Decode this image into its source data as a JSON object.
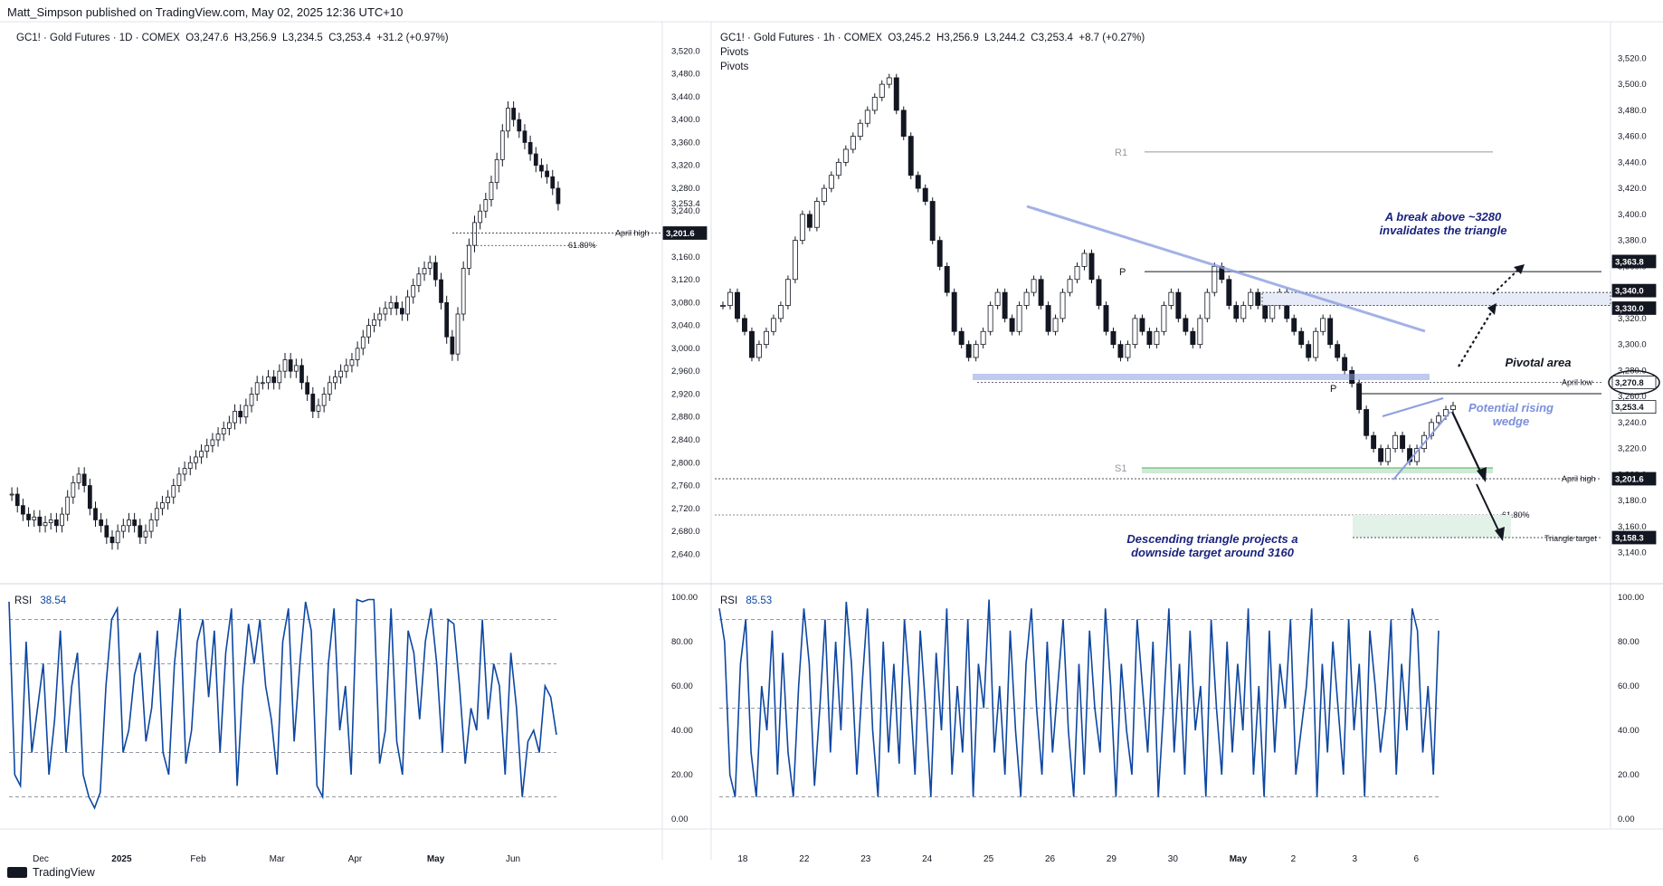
{
  "header": {
    "text": "Matt_Simpson published on TradingView.com, May 02, 2025 12:36 UTC+10"
  },
  "footer": {
    "brand": "TradingView"
  },
  "colors": {
    "up": "#131722",
    "down": "#131722",
    "rsi": "#0d47a1",
    "annot": "#7b8fd9",
    "label_bg": "#131722"
  },
  "chart_data": [
    {
      "type": "candlestick",
      "info": {
        "symbol": "GC1! · Gold Futures · 1D · COMEX",
        "o": "O3,247.6",
        "h": "H3,256.9",
        "l": "L3,234.5",
        "c": "C3,253.4",
        "chg": "+31.2 (+0.97%)"
      },
      "xticks": [
        "Dec",
        "2025",
        "Feb",
        "Mar",
        "Apr",
        "May",
        "Jun"
      ],
      "yticks": [
        "3,520.0",
        "3,480.0",
        "3,440.0",
        "3,400.0",
        "3,360.0",
        "3,320.0",
        "3,280.0",
        "3,240.0",
        "3,200.0",
        "3,160.0",
        "3,120.0",
        "3,080.0",
        "3,040.0",
        "3,000.0",
        "2,960.0",
        "2,920.0",
        "2,880.0",
        "2,840.0",
        "2,800.0",
        "2,760.0",
        "2,720.0",
        "2,680.0",
        "2,640.0"
      ],
      "ylim": [
        2620,
        3530
      ],
      "close_series": [
        2745,
        2725,
        2710,
        2700,
        2705,
        2690,
        2695,
        2700,
        2690,
        2710,
        2740,
        2765,
        2780,
        2760,
        2720,
        2700,
        2690,
        2670,
        2660,
        2680,
        2690,
        2700,
        2690,
        2670,
        2680,
        2700,
        2720,
        2730,
        2740,
        2760,
        2780,
        2790,
        2800,
        2810,
        2820,
        2830,
        2840,
        2850,
        2860,
        2870,
        2890,
        2880,
        2900,
        2920,
        2940,
        2940,
        2950,
        2940,
        2960,
        2980,
        2960,
        2970,
        2940,
        2920,
        2890,
        2900,
        2920,
        2940,
        2950,
        2960,
        2970,
        2980,
        3000,
        3020,
        3040,
        3050,
        3060,
        3070,
        3080,
        3070,
        3060,
        3090,
        3110,
        3130,
        3140,
        3150,
        3120,
        3080,
        3020,
        2990,
        3060,
        3140,
        3180,
        3220,
        3240,
        3260,
        3290,
        3330,
        3380,
        3420,
        3400,
        3380,
        3360,
        3340,
        3320,
        3310,
        3300,
        3280,
        3253
      ],
      "annotations": {
        "april_high_label": "April high",
        "april_high_value": "3,201.6",
        "fib_label": "61.80%",
        "last_value": "3,253.4"
      },
      "april_high": 3201.6,
      "fib_level": 3180,
      "last_price": 3253.4,
      "rsi": {
        "label": "RSI",
        "value": "38.54",
        "yticks": [
          "100.00",
          "80.00",
          "60.00",
          "40.00",
          "20.00",
          "0.00"
        ],
        "ylim": [
          0,
          100
        ],
        "bands": [
          30,
          70,
          90,
          10
        ],
        "values": [
          98,
          20,
          15,
          80,
          30,
          50,
          70,
          20,
          45,
          85,
          30,
          60,
          75,
          20,
          10,
          5,
          12,
          60,
          90,
          95,
          30,
          40,
          65,
          75,
          35,
          50,
          85,
          30,
          20,
          70,
          95,
          25,
          40,
          80,
          90,
          55,
          85,
          30,
          75,
          95,
          15,
          60,
          88,
          70,
          90,
          60,
          45,
          20,
          80,
          95,
          35,
          70,
          98,
          85,
          15,
          10,
          70,
          95,
          40,
          60,
          20,
          99,
          98,
          99,
          99,
          25,
          40,
          95,
          35,
          20,
          85,
          75,
          45,
          80,
          95,
          70,
          30,
          90,
          88,
          60,
          25,
          50,
          40,
          90,
          45,
          70,
          60,
          20,
          75,
          50,
          10,
          35,
          40,
          30,
          60,
          55,
          38
        ]
      }
    },
    {
      "type": "candlestick",
      "info": {
        "symbol": "GC1! · Gold Futures · 1h · COMEX",
        "o": "O3,245.2",
        "h": "H3,256.9",
        "l": "L3,244.2",
        "c": "C3,253.4",
        "chg": "+8.7 (+0.27%)",
        "indicator1": "Pivots",
        "indicator2": "Pivots"
      },
      "xticks": [
        "18",
        "22",
        "23",
        "24",
        "25",
        "26",
        "29",
        "30",
        "May",
        "2",
        "3",
        "6"
      ],
      "yticks": [
        "3,520.0",
        "3,500.0",
        "3,480.0",
        "3,460.0",
        "3,440.0",
        "3,420.0",
        "3,400.0",
        "3,380.0",
        "3,360.0",
        "3,340.0",
        "3,320.0",
        "3,300.0",
        "3,280.0",
        "3,260.0",
        "3,240.0",
        "3,220.0",
        "3,200.0",
        "3,180.0",
        "3,160.0",
        "3,140.0"
      ],
      "ylim": [
        3130,
        3530
      ],
      "close_series": [
        3330,
        3340,
        3320,
        3310,
        3290,
        3300,
        3310,
        3320,
        3330,
        3350,
        3380,
        3400,
        3390,
        3410,
        3420,
        3430,
        3440,
        3450,
        3460,
        3470,
        3480,
        3490,
        3500,
        3505,
        3480,
        3460,
        3430,
        3420,
        3410,
        3380,
        3360,
        3340,
        3310,
        3300,
        3290,
        3300,
        3310,
        3330,
        3340,
        3320,
        3310,
        3330,
        3340,
        3350,
        3330,
        3310,
        3320,
        3340,
        3350,
        3360,
        3370,
        3350,
        3330,
        3310,
        3300,
        3290,
        3300,
        3320,
        3310,
        3300,
        3310,
        3330,
        3340,
        3320,
        3310,
        3300,
        3320,
        3340,
        3360,
        3350,
        3330,
        3320,
        3330,
        3340,
        3330,
        3320,
        3330,
        3340,
        3320,
        3310,
        3300,
        3290,
        3310,
        3320,
        3300,
        3290,
        3280,
        3270,
        3250,
        3230,
        3220,
        3210,
        3220,
        3230,
        3220,
        3210,
        3220,
        3230,
        3240,
        3245,
        3250,
        3253
      ],
      "annotations": {
        "r1": "R1",
        "p1": "P",
        "p2": "P",
        "s1": "S1",
        "breakout_text": "A break above ~3280\ninvalidates the triangle",
        "pivotal_text": "Pivotal area",
        "wedge_text": "Potential rising\nwedge",
        "triangle_text": "Descending triangle projects a\ndownside target around 3160",
        "april_low": "April low",
        "april_high": "April high",
        "fib_label": "61.80%",
        "triangle_target": "Triangle target",
        "labels": [
          "3,363.8",
          "3,340.0",
          "3,330.0",
          "3,270.8",
          "3,253.4",
          "3,201.6",
          "3,158.3"
        ]
      },
      "levels": {
        "r1": 3448,
        "p_upper": 3356,
        "april_low": 3270.8,
        "s1": 3200,
        "april_high": 3201.6,
        "fib": 3175,
        "target": 3158.3,
        "zone_top": 3340,
        "zone_bot": 3330,
        "resistance": 3363.8,
        "last": 3253.4
      },
      "rsi": {
        "label": "RSI",
        "value": "85.53",
        "yticks": [
          "100.00",
          "80.00",
          "60.00",
          "40.00",
          "20.00",
          "0.00"
        ],
        "ylim": [
          0,
          100
        ],
        "bands": [
          90,
          50,
          10
        ],
        "values": [
          95,
          80,
          20,
          10,
          70,
          90,
          30,
          10,
          60,
          40,
          85,
          20,
          75,
          30,
          10,
          60,
          95,
          70,
          15,
          50,
          90,
          30,
          80,
          40,
          98,
          70,
          20,
          60,
          95,
          40,
          10,
          80,
          30,
          70,
          25,
          90,
          60,
          20,
          85,
          50,
          10,
          75,
          40,
          95,
          20,
          60,
          30,
          90,
          10,
          70,
          50,
          99,
          30,
          60,
          20,
          85,
          40,
          10,
          70,
          95,
          50,
          20,
          80,
          30,
          60,
          90,
          40,
          10,
          70,
          20,
          85,
          50,
          30,
          95,
          60,
          10,
          70,
          40,
          20,
          90,
          60,
          30,
          80,
          10,
          50,
          95,
          30,
          70,
          20,
          85,
          40,
          60,
          10,
          90,
          50,
          20,
          80,
          30,
          70,
          40,
          95,
          20,
          60,
          10,
          85,
          30,
          70,
          50,
          90,
          20,
          40,
          60,
          95,
          10,
          70,
          30,
          80,
          50,
          20,
          90,
          40,
          70,
          10,
          85,
          60,
          30,
          50,
          90,
          20,
          70,
          40,
          95,
          85,
          30,
          60,
          20,
          85
        ]
      }
    }
  ]
}
